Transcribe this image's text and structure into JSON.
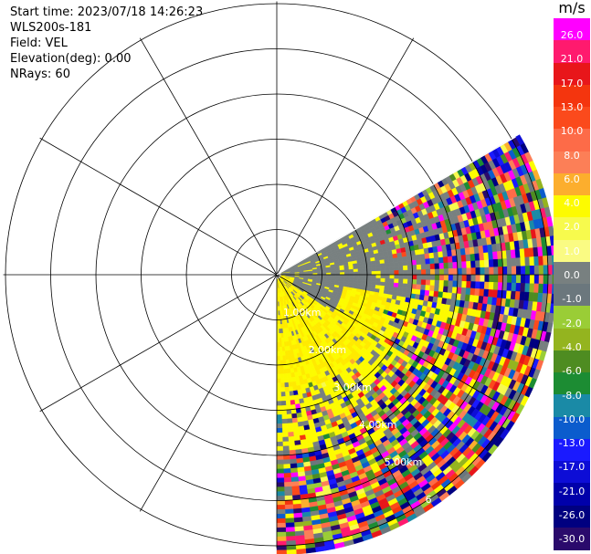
{
  "header": {
    "start_time": "Start time: 2023/07/18 14:26:23",
    "instrument": "WLS200s-181",
    "field": "Field: VEL",
    "elevation": "Elevation(deg): 0.00",
    "nrays": "NRays: 60"
  },
  "chart_data": {
    "type": "heatmap",
    "projection": "polar-ppi",
    "sector_azimuth_deg": [
      60,
      180
    ],
    "max_range_km": 6.1,
    "range_ring_labels": [
      {
        "range_km": 1,
        "label": "1.00km"
      },
      {
        "range_km": 2,
        "label": "2.00km"
      },
      {
        "range_km": 3,
        "label": "3.00km"
      },
      {
        "range_km": 4,
        "label": "4.00km"
      },
      {
        "range_km": 5,
        "label": "5.00km"
      },
      {
        "range_km": 6,
        "label": "6"
      }
    ],
    "value_regions": [
      {
        "azimuth": [
          60,
          100
        ],
        "range_km": [
          0,
          2.8
        ],
        "value": 0.0
      },
      {
        "azimuth": [
          100,
          180
        ],
        "range_km": [
          0,
          2.6
        ],
        "value": 3.0
      },
      {
        "azimuth": [
          100,
          125
        ],
        "range_km": [
          0.4,
          1.5
        ],
        "value": 0.0
      }
    ],
    "colorbar": {
      "unit": "m/s",
      "range": [
        -30,
        30
      ],
      "ticks": [
        "26.0",
        "21.0",
        "17.0",
        "13.0",
        "10.0",
        "8.0",
        "6.0",
        "4.0",
        "2.0",
        "1.0",
        "0.0",
        "-1.0",
        "-2.0",
        "-4.0",
        "-6.0",
        "-8.0",
        "-10.0",
        "-13.0",
        "-17.0",
        "-21.0",
        "-26.0",
        "-30.0"
      ],
      "colors": [
        "#ff00ff",
        "#ff1a6e",
        "#e8161a",
        "#f4350e",
        "#fb4a1c",
        "#fd6b48",
        "#fc7f57",
        "#fcae2d",
        "#fdfb00",
        "#f7fa4d",
        "#fafb83",
        "#788080",
        "#6b777d",
        "#9acd36",
        "#94b41f",
        "#4e8c21",
        "#1c8c33",
        "#1a8aa6",
        "#0b5ccd",
        "#1a1aff",
        "#0d0dd6",
        "#0000aa",
        "#000080",
        "#2a0a6c"
      ]
    }
  }
}
